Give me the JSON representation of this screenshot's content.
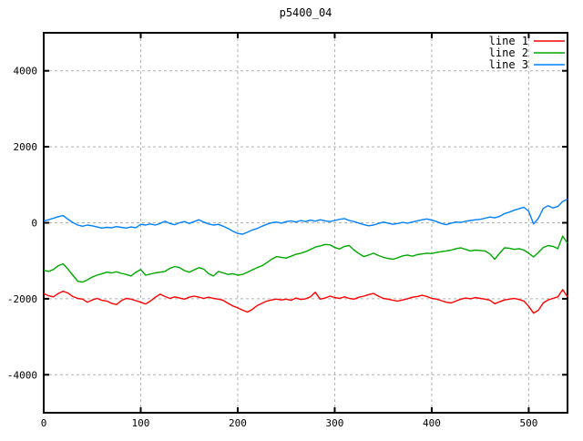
{
  "chart_data": {
    "type": "line",
    "title": "p5400_04",
    "xlabel": "",
    "ylabel": "",
    "xlim": [
      0,
      540
    ],
    "ylim": [
      -5000,
      5000
    ],
    "x_ticks": [
      0,
      100,
      200,
      300,
      400,
      500
    ],
    "y_ticks": [
      -4000,
      -2000,
      0,
      2000,
      4000
    ],
    "grid": true,
    "grid_style": "dashed",
    "legend_position": "top-right-inside",
    "colors": {
      "background": "#ffffff",
      "border": "#000000",
      "grid": "#b0b0b0",
      "text": "#000000"
    },
    "x": [
      0,
      5,
      10,
      15,
      20,
      25,
      30,
      35,
      40,
      45,
      50,
      55,
      60,
      65,
      70,
      75,
      80,
      85,
      90,
      95,
      100,
      105,
      110,
      115,
      120,
      125,
      130,
      135,
      140,
      145,
      150,
      155,
      160,
      165,
      170,
      175,
      180,
      185,
      190,
      195,
      200,
      205,
      210,
      215,
      220,
      225,
      230,
      235,
      240,
      245,
      250,
      255,
      260,
      265,
      270,
      275,
      280,
      285,
      290,
      295,
      300,
      305,
      310,
      315,
      320,
      325,
      330,
      335,
      340,
      345,
      350,
      355,
      360,
      365,
      370,
      375,
      380,
      385,
      390,
      395,
      400,
      405,
      410,
      415,
      420,
      425,
      430,
      435,
      440,
      445,
      450,
      455,
      460,
      465,
      470,
      475,
      480,
      485,
      490,
      495,
      500,
      505,
      510,
      515,
      520,
      525,
      530,
      535,
      540
    ],
    "series": [
      {
        "name": "line 1",
        "color": "#ff0000",
        "values": [
          -1860,
          -1920,
          -1950,
          -1860,
          -1800,
          -1850,
          -1940,
          -1990,
          -2010,
          -2090,
          -2030,
          -1990,
          -2040,
          -2060,
          -2120,
          -2150,
          -2050,
          -1990,
          -2010,
          -2050,
          -2090,
          -2140,
          -2060,
          -1960,
          -1880,
          -1940,
          -1990,
          -1950,
          -1980,
          -2010,
          -1960,
          -1930,
          -1960,
          -1990,
          -1960,
          -1990,
          -2010,
          -2040,
          -2120,
          -2190,
          -2240,
          -2300,
          -2350,
          -2280,
          -2180,
          -2120,
          -2060,
          -2030,
          -2010,
          -2030,
          -2010,
          -2040,
          -1980,
          -2020,
          -2000,
          -1950,
          -1830,
          -2010,
          -1980,
          -1930,
          -1970,
          -1990,
          -1950,
          -1990,
          -2010,
          -1960,
          -1930,
          -1890,
          -1860,
          -1930,
          -1990,
          -2010,
          -2040,
          -2060,
          -2030,
          -2000,
          -1960,
          -1940,
          -1910,
          -1940,
          -1990,
          -2010,
          -2050,
          -2090,
          -2110,
          -2060,
          -2010,
          -1980,
          -2000,
          -1970,
          -1990,
          -2010,
          -2040,
          -2130,
          -2080,
          -2030,
          -2010,
          -1990,
          -2020,
          -2060,
          -2200,
          -2380,
          -2300,
          -2110,
          -2030,
          -1990,
          -1950,
          -1760,
          -1950
        ]
      },
      {
        "name": "line 2",
        "color": "#00a800",
        "values": [
          -1250,
          -1280,
          -1230,
          -1130,
          -1080,
          -1220,
          -1380,
          -1540,
          -1560,
          -1500,
          -1430,
          -1380,
          -1340,
          -1300,
          -1320,
          -1290,
          -1330,
          -1360,
          -1400,
          -1300,
          -1230,
          -1380,
          -1350,
          -1320,
          -1300,
          -1280,
          -1200,
          -1150,
          -1180,
          -1260,
          -1300,
          -1240,
          -1180,
          -1220,
          -1340,
          -1400,
          -1280,
          -1320,
          -1360,
          -1340,
          -1380,
          -1360,
          -1300,
          -1240,
          -1180,
          -1130,
          -1050,
          -960,
          -890,
          -910,
          -930,
          -880,
          -830,
          -800,
          -760,
          -700,
          -640,
          -610,
          -570,
          -580,
          -650,
          -690,
          -620,
          -600,
          -720,
          -810,
          -890,
          -850,
          -800,
          -860,
          -910,
          -940,
          -960,
          -920,
          -870,
          -850,
          -880,
          -840,
          -820,
          -800,
          -810,
          -780,
          -760,
          -740,
          -720,
          -680,
          -660,
          -700,
          -740,
          -720,
          -730,
          -740,
          -820,
          -960,
          -800,
          -660,
          -670,
          -700,
          -680,
          -720,
          -800,
          -900,
          -780,
          -650,
          -600,
          -620,
          -680,
          -350,
          -540
        ]
      },
      {
        "name": "line 3",
        "color": "#0080ff",
        "values": [
          50,
          80,
          120,
          160,
          190,
          90,
          10,
          -60,
          -90,
          -60,
          -80,
          -110,
          -140,
          -120,
          -130,
          -100,
          -120,
          -140,
          -110,
          -130,
          -40,
          -60,
          -30,
          -60,
          -20,
          40,
          -20,
          -50,
          0,
          30,
          -20,
          30,
          80,
          20,
          -30,
          -60,
          -40,
          -90,
          -150,
          -220,
          -280,
          -300,
          -250,
          -190,
          -150,
          -90,
          -40,
          0,
          20,
          -10,
          30,
          50,
          20,
          60,
          30,
          70,
          40,
          80,
          50,
          30,
          60,
          90,
          110,
          60,
          30,
          -10,
          -50,
          -80,
          -60,
          -20,
          20,
          -10,
          -40,
          -20,
          10,
          -10,
          20,
          50,
          80,
          100,
          70,
          30,
          -20,
          -50,
          -10,
          20,
          10,
          40,
          60,
          80,
          90,
          120,
          150,
          130,
          170,
          240,
          280,
          330,
          370,
          410,
          300,
          -30,
          120,
          380,
          450,
          390,
          430,
          560,
          620
        ]
      }
    ],
    "legend_order": [
      "line 1",
      "line 2",
      "line 3"
    ]
  }
}
